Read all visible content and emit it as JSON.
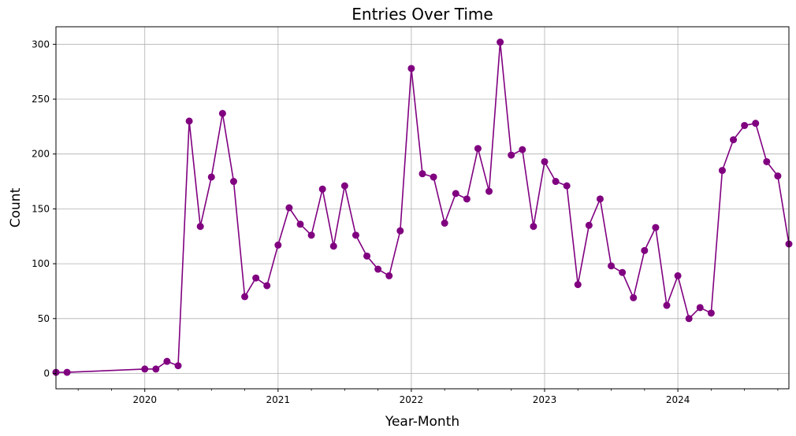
{
  "chart_data": {
    "type": "line",
    "title": "Entries Over Time",
    "xlabel": "Year-Month",
    "ylabel": "Count",
    "x_range": [
      "2019-05",
      "2024-11"
    ],
    "ylim": [
      -14,
      316
    ],
    "y_ticks": [
      0,
      50,
      100,
      150,
      200,
      250,
      300
    ],
    "x_major_ticks": [
      {
        "date": "2020-01",
        "label": "2020"
      },
      {
        "date": "2021-01",
        "label": "2021"
      },
      {
        "date": "2022-01",
        "label": "2022"
      },
      {
        "date": "2023-01",
        "label": "2023"
      },
      {
        "date": "2024-01",
        "label": "2024"
      }
    ],
    "x_minor_tick_interval": "quarterly",
    "grid": true,
    "color": "#800080",
    "marker": "circle",
    "series": [
      {
        "x": [
          "2019-05",
          "2019-06",
          "2020-01",
          "2020-02",
          "2020-03",
          "2020-04",
          "2020-05",
          "2020-06",
          "2020-07",
          "2020-08",
          "2020-09",
          "2020-10",
          "2020-11",
          "2020-12",
          "2021-01",
          "2021-02",
          "2021-03",
          "2021-04",
          "2021-05",
          "2021-06",
          "2021-07",
          "2021-08",
          "2021-09",
          "2021-10",
          "2021-11",
          "2021-12",
          "2022-01",
          "2022-02",
          "2022-03",
          "2022-04",
          "2022-05",
          "2022-06",
          "2022-07",
          "2022-08",
          "2022-09",
          "2022-10",
          "2022-11",
          "2022-12",
          "2023-01",
          "2023-02",
          "2023-03",
          "2023-04",
          "2023-05",
          "2023-06",
          "2023-07",
          "2023-08",
          "2023-09",
          "2023-10",
          "2023-11",
          "2023-12",
          "2024-01",
          "2024-02",
          "2024-03",
          "2024-04",
          "2024-05",
          "2024-06",
          "2024-07",
          "2024-08",
          "2024-09",
          "2024-10",
          "2024-11"
        ],
        "values": [
          1,
          1,
          4,
          4,
          11,
          7,
          230,
          134,
          179,
          237,
          175,
          70,
          87,
          80,
          117,
          151,
          136,
          126,
          168,
          116,
          171,
          126,
          107,
          95,
          89,
          130,
          278,
          182,
          179,
          137,
          164,
          159,
          205,
          166,
          302,
          199,
          204,
          134,
          193,
          175,
          171,
          81,
          135,
          159,
          98,
          92,
          69,
          112,
          133,
          62,
          89,
          50,
          60,
          55,
          185,
          213,
          226,
          228,
          193,
          180,
          118
        ]
      }
    ]
  }
}
